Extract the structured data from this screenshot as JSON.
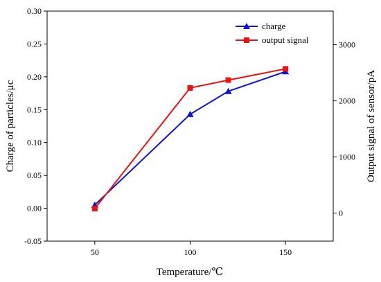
{
  "chart_data": {
    "type": "line",
    "title": "",
    "xlabel": "Temperature/℃",
    "ylabel": "Charge of particles/μc",
    "y2label": "Output signal of sensor/pA",
    "xlim": [
      25,
      175
    ],
    "ylim": [
      -0.05,
      0.3
    ],
    "y2lim": [
      -500,
      3600
    ],
    "xticks": [
      50,
      100,
      150
    ],
    "yticks": [
      -0.05,
      0.0,
      0.05,
      0.1,
      0.15,
      0.2,
      0.25,
      0.3
    ],
    "ytick_labels": [
      "-0.05",
      "0.00",
      "0.05",
      "0.10",
      "0.15",
      "0.20",
      "0.25",
      "0.30"
    ],
    "y2ticks": [
      0,
      1000,
      2000,
      3000
    ],
    "y2tick_labels": [
      "0",
      "1000",
      "2000",
      "3000"
    ],
    "grid": false,
    "legend_position": "top-right",
    "series": [
      {
        "name": "charge",
        "axis": "left",
        "marker": "triangle",
        "color": "#1010d8",
        "x": [
          50,
          100,
          120,
          150
        ],
        "values": [
          0.005,
          0.143,
          0.178,
          0.208
        ]
      },
      {
        "name": "output signal",
        "axis": "right",
        "marker": "square",
        "color": "#ee1111",
        "x": [
          50,
          100,
          120,
          150
        ],
        "values": [
          80,
          2230,
          2370,
          2570
        ]
      }
    ]
  }
}
